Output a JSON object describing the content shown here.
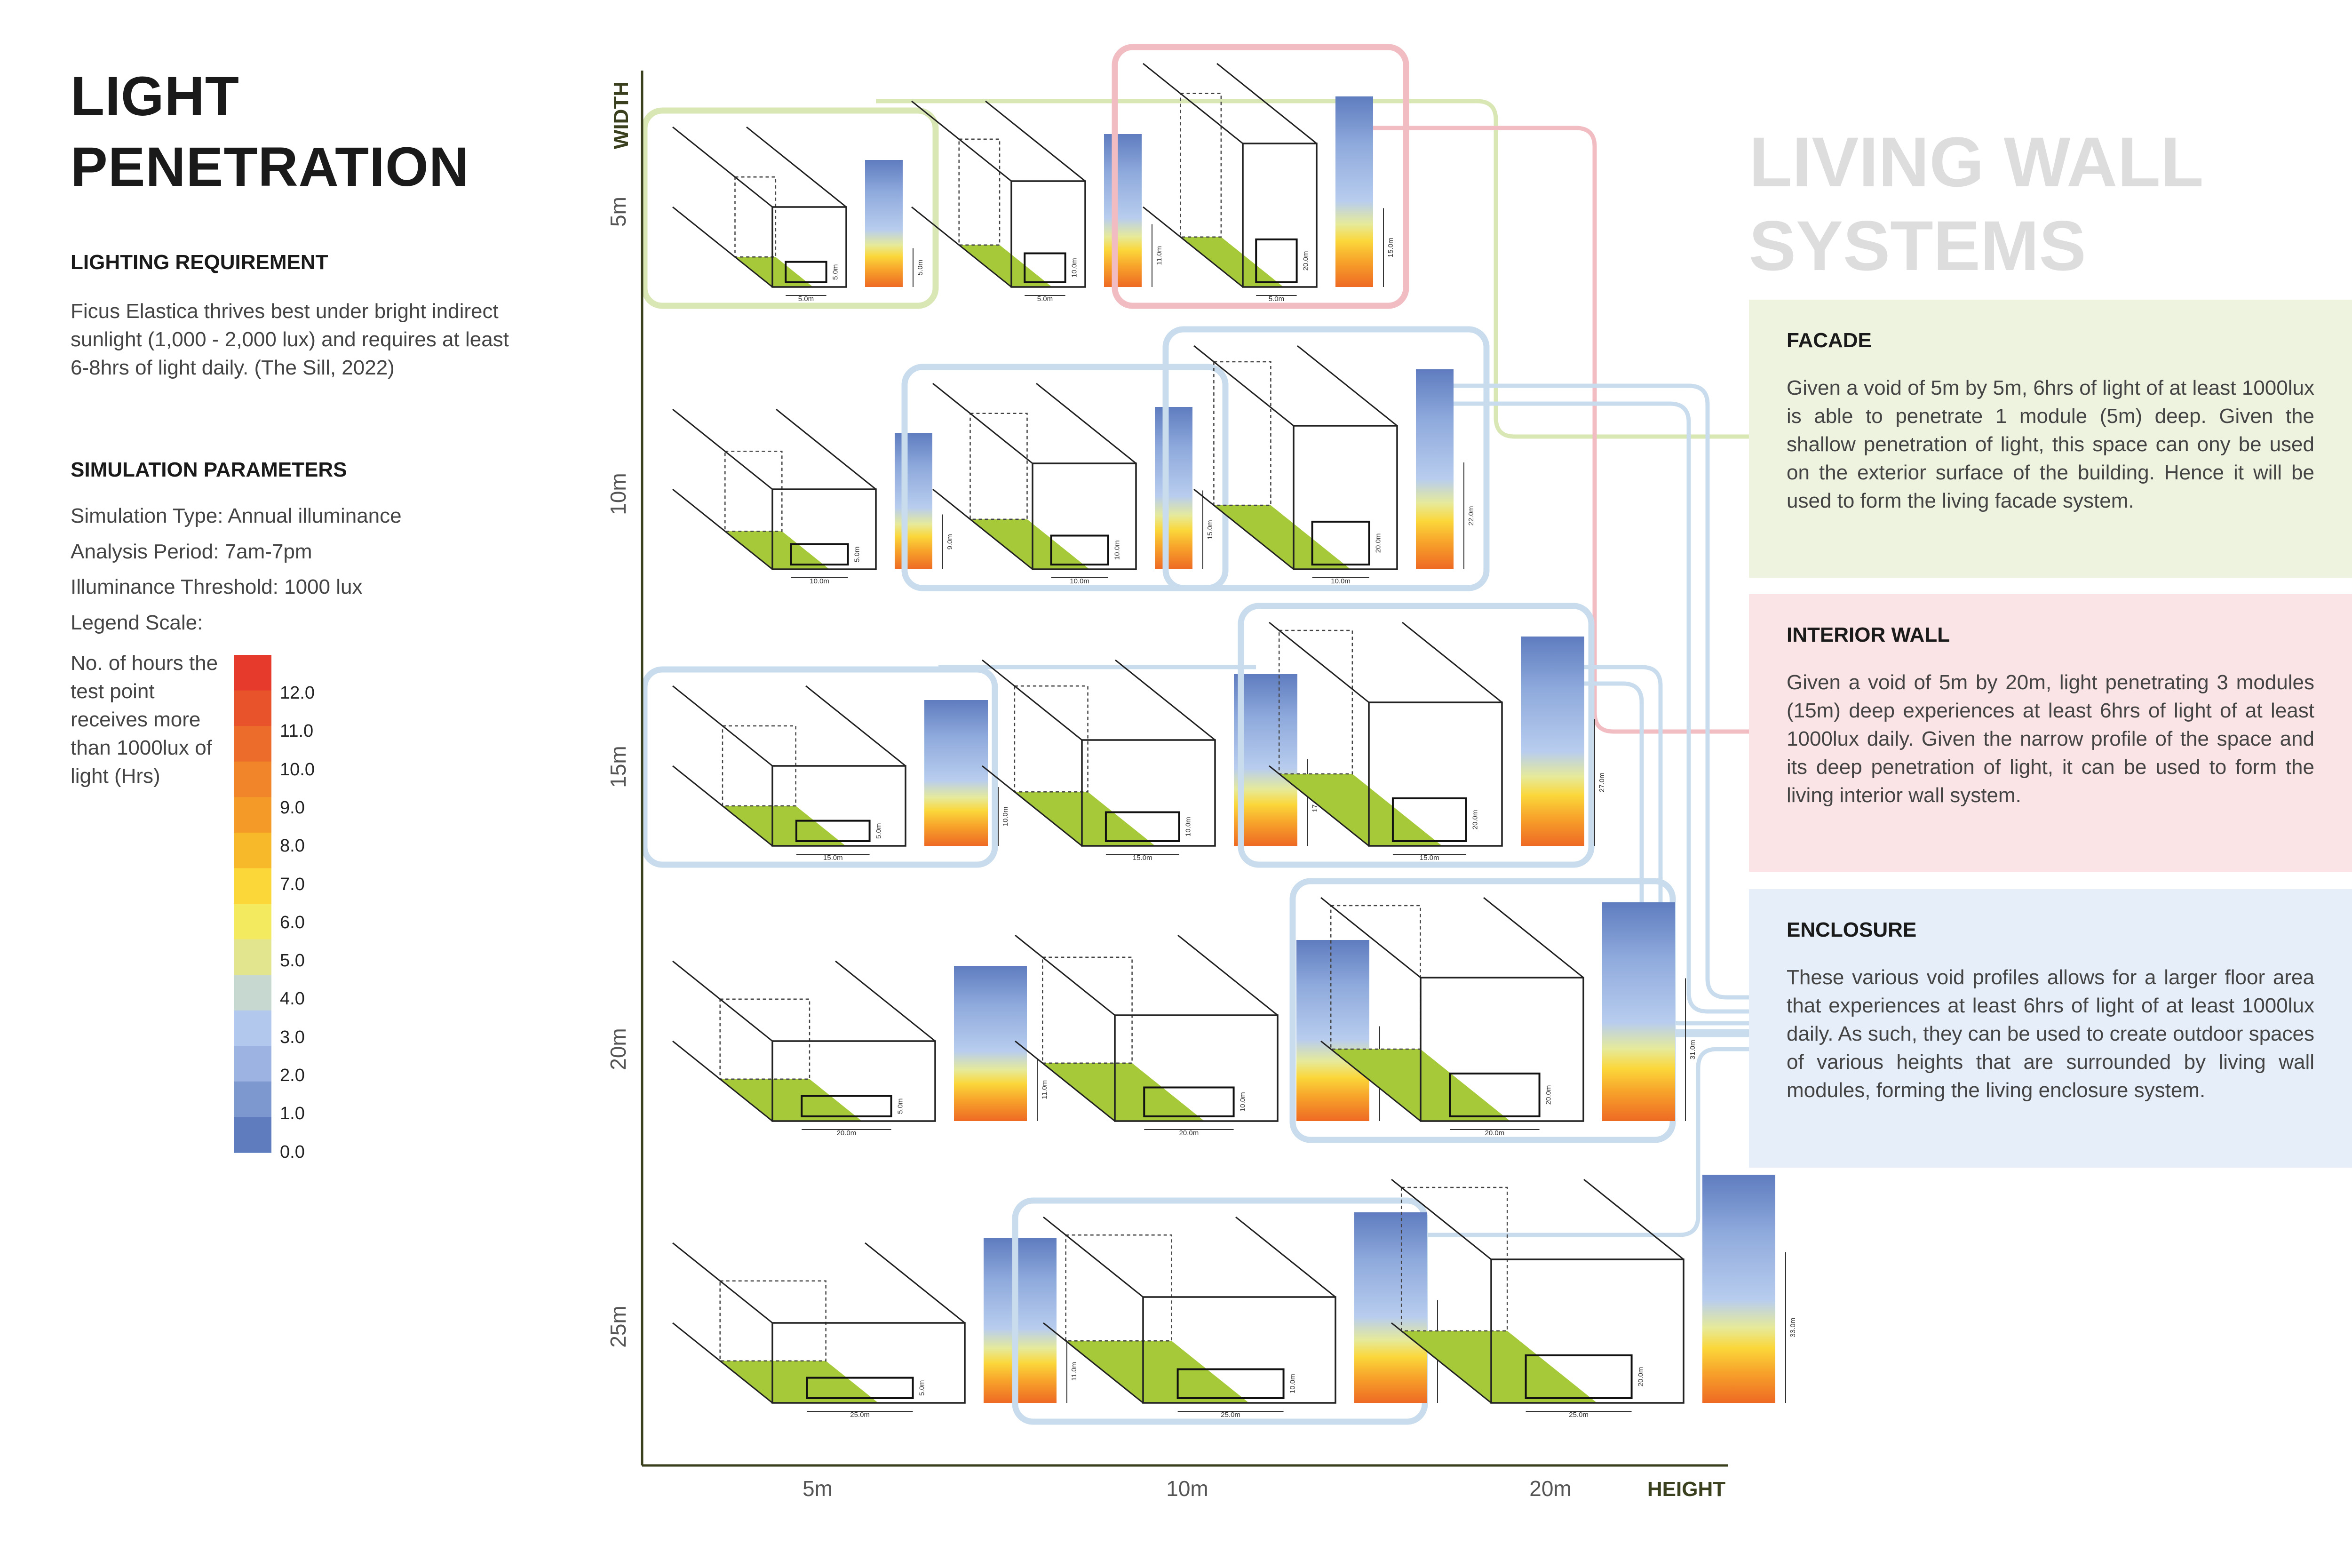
{
  "title_lines": [
    "LIGHT",
    "PENETRATION"
  ],
  "lighting_requirement": {
    "heading": "LIGHTING REQUIREMENT",
    "text": "Ficus Elastica thrives best under bright indirect sunlight (1,000 - 2,000 lux) and requires at least 6-8hrs of light daily. (The Sill, 2022)"
  },
  "simulation_parameters": {
    "heading": "SIMULATION PARAMETERS",
    "items": [
      "Simulation Type: Annual illuminance",
      "Analysis Period: 7am-7pm",
      "Illuminance Threshold: 1000 lux",
      "Legend Scale:"
    ]
  },
  "legend": {
    "caption": "No. of hours the test point receives more than 1000lux of light (Hrs)",
    "labels": [
      "12.0",
      "11.0",
      "10.0",
      "9.0",
      "8.0",
      "7.0",
      "6.0",
      "5.0",
      "4.0",
      "3.0",
      "2.0",
      "1.0",
      "0.0"
    ],
    "colors": [
      "#e53a2c",
      "#e8532c",
      "#ec6c2b",
      "#f0852a",
      "#f39a28",
      "#f7b92a",
      "#fbd73a",
      "#f4ea60",
      "#e3e58e",
      "#c6d8cf",
      "#b2c8ec",
      "#9db3e1",
      "#7d98cf",
      "#5f7cbf"
    ]
  },
  "axes": {
    "y_title": "WIDTH",
    "x_title": "HEIGHT",
    "y_labels": [
      "5m",
      "10m",
      "15m",
      "20m",
      "25m"
    ],
    "x_labels": [
      "5m",
      "10m",
      "20m"
    ]
  },
  "cells": [
    {
      "w": 5,
      "h": 5,
      "w_label": "5.0m",
      "h_label": "5.0m",
      "depth_label": "5.0m",
      "highlight": "green"
    },
    {
      "w": 5,
      "h": 10,
      "w_label": "5.0m",
      "h_label": "10.0m",
      "depth_label": "11.0m",
      "highlight": "none"
    },
    {
      "w": 5,
      "h": 20,
      "w_label": "5.0m",
      "h_label": "20.0m",
      "depth_label": "15.0m",
      "highlight": "pink"
    },
    {
      "w": 10,
      "h": 5,
      "w_label": "10.0m",
      "h_label": "5.0m",
      "depth_label": "9.0m",
      "highlight": "none"
    },
    {
      "w": 10,
      "h": 10,
      "w_label": "10.0m",
      "h_label": "10.0m",
      "depth_label": "15.0m",
      "highlight": "blue"
    },
    {
      "w": 10,
      "h": 20,
      "w_label": "10.0m",
      "h_label": "20.0m",
      "depth_label": "22.0m",
      "highlight": "blue"
    },
    {
      "w": 15,
      "h": 5,
      "w_label": "15.0m",
      "h_label": "5.0m",
      "depth_label": "10.0m",
      "highlight": "blue"
    },
    {
      "w": 15,
      "h": 10,
      "w_label": "15.0m",
      "h_label": "10.0m",
      "depth_label": "17.0m",
      "highlight": "none"
    },
    {
      "w": 15,
      "h": 20,
      "w_label": "15.0m",
      "h_label": "20.0m",
      "depth_label": "27.0m",
      "highlight": "blue"
    },
    {
      "w": 20,
      "h": 5,
      "w_label": "20.0m",
      "h_label": "5.0m",
      "depth_label": "11.0m",
      "highlight": "none"
    },
    {
      "w": 20,
      "h": 10,
      "w_label": "20.0m",
      "h_label": "10.0m",
      "depth_label": "19.0m",
      "highlight": "none"
    },
    {
      "w": 20,
      "h": 20,
      "w_label": "20.0m",
      "h_label": "20.0m",
      "depth_label": "31.0m",
      "highlight": "blue"
    },
    {
      "w": 25,
      "h": 5,
      "w_label": "25.0m",
      "h_label": "5.0m",
      "depth_label": "11.0m",
      "highlight": "none"
    },
    {
      "w": 25,
      "h": 10,
      "w_label": "25.0m",
      "h_label": "10.0m",
      "depth_label": "21.0m",
      "highlight": "blue"
    },
    {
      "w": 25,
      "h": 20,
      "w_label": "25.0m",
      "h_label": "20.0m",
      "depth_label": "33.0m",
      "highlight": "none"
    }
  ],
  "living_wall": {
    "title_lines": [
      "LIVING WALL",
      "SYSTEMS"
    ],
    "facade": {
      "heading": "FACADE",
      "text": "Given a void of 5m by 5m, 6hrs of light of at least 1000lux is able to penetrate 1 module (5m) deep. Given the shallow penetration of light, this space can ony be used on the exterior surface of the building. Hence it will be used to form the living facade system."
    },
    "interior": {
      "heading": "INTERIOR WALL",
      "text": "Given a void of 5m by 20m, light penetrating 3 modules (15m) deep experiences at least 6hrs of light of at least 1000lux daily. Given the narrow profile of the space and its deep penetration of light, it can be used to form the living interior wall system."
    },
    "enclosure": {
      "heading": "ENCLOSURE",
      "text": "These various void profiles allows for a larger floor area that experiences at least 6hrs of light of at least 1000lux daily. As such, they can be used to create outdoor spaces of various heights that are surrounded by living wall modules, forming the living enclosure system."
    }
  },
  "colors": {
    "green_frame": "#d9e7b5",
    "pink_frame": "#f1bcc2",
    "blue_frame": "#c8dced",
    "floor_green": "#a6c93a",
    "axis_dark": "#3a3f1e"
  }
}
